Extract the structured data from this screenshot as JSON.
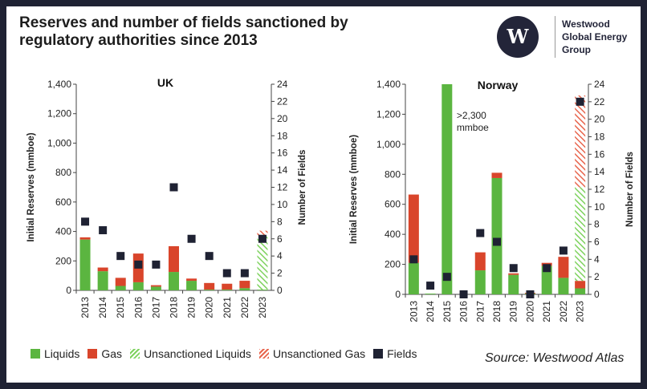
{
  "header": {
    "title_line1": "Reserves and number of fields sanctioned by",
    "title_line2": "regulatory authorities since 2013",
    "logo_letter": "W",
    "logo_line1": "Westwood",
    "logo_line2": "Global Energy",
    "logo_line3": "Group"
  },
  "colors": {
    "liquids": "#5bb540",
    "gas": "#d9452b",
    "unsanctioned_liquids": "#7ed25e",
    "unsanctioned_gas": "#e8654d",
    "fields": "#1f2233",
    "axis": "#444444"
  },
  "legend": [
    {
      "key": "liquids",
      "label": "Liquids"
    },
    {
      "key": "gas",
      "label": "Gas"
    },
    {
      "key": "unsanctioned_liquids",
      "label": "Unsanctioned Liquids"
    },
    {
      "key": "unsanctioned_gas",
      "label": "Unsanctioned Gas"
    },
    {
      "key": "fields",
      "label": "Fields"
    }
  ],
  "footer": {
    "source": "Source: Westwood Atlas"
  },
  "chart_data": [
    {
      "id": "uk",
      "type": "bar",
      "title": "UK",
      "ylabel": "Initial Reserves (mmboe)",
      "y2label": "Number of Fields",
      "ylim": [
        0,
        1400
      ],
      "y2lim": [
        0,
        24
      ],
      "yticks": [
        0,
        200,
        400,
        600,
        800,
        1000,
        1200,
        1400
      ],
      "y2ticks": [
        0,
        2,
        4,
        6,
        8,
        10,
        12,
        14,
        16,
        18,
        20,
        22,
        24
      ],
      "categories": [
        "2013",
        "2014",
        "2015",
        "2016",
        "2017",
        "2018",
        "2019",
        "2020",
        "2021",
        "2022",
        "2023"
      ],
      "series": [
        {
          "name": "Liquids",
          "key": "liquids",
          "values": [
            345,
            130,
            30,
            55,
            25,
            125,
            65,
            5,
            5,
            15,
            5
          ]
        },
        {
          "name": "Gas",
          "key": "gas",
          "values": [
            15,
            25,
            55,
            195,
            10,
            175,
            15,
            45,
            40,
            50,
            0
          ]
        },
        {
          "name": "Unsanctioned Liquids",
          "key": "unsanctioned_liquids",
          "values": [
            0,
            0,
            0,
            0,
            0,
            0,
            0,
            0,
            0,
            0,
            365
          ]
        },
        {
          "name": "Unsanctioned Gas",
          "key": "unsanctioned_gas",
          "values": [
            0,
            0,
            0,
            0,
            0,
            0,
            0,
            0,
            0,
            0,
            35
          ]
        }
      ],
      "fields": [
        8,
        7,
        4,
        3,
        3,
        12,
        6,
        4,
        2,
        2,
        6
      ],
      "annotation": null
    },
    {
      "id": "norway",
      "type": "bar",
      "title": "Norway",
      "ylabel": "Initial Reserves (mmboe)",
      "y2label": "Number of Fields",
      "ylim": [
        0,
        1400
      ],
      "y2lim": [
        0,
        24
      ],
      "yticks": [
        0,
        200,
        400,
        600,
        800,
        1000,
        1200,
        1400
      ],
      "y2ticks": [
        0,
        2,
        4,
        6,
        8,
        10,
        12,
        14,
        16,
        18,
        20,
        22,
        24
      ],
      "categories": [
        "2013",
        "2014",
        "2015",
        "2016",
        "2017",
        "2018",
        "2019",
        "2020",
        "2021",
        "2022",
        "2023"
      ],
      "series": [
        {
          "name": "Liquids",
          "key": "liquids",
          "values": [
            210,
            5,
            1400,
            0,
            160,
            775,
            130,
            5,
            190,
            110,
            40
          ]
        },
        {
          "name": "Gas",
          "key": "gas",
          "values": [
            455,
            0,
            0,
            0,
            120,
            35,
            10,
            5,
            20,
            140,
            50
          ]
        },
        {
          "name": "Unsanctioned Liquids",
          "key": "unsanctioned_liquids",
          "values": [
            0,
            0,
            0,
            0,
            0,
            0,
            0,
            0,
            0,
            0,
            625
          ]
        },
        {
          "name": "Unsanctioned Gas",
          "key": "unsanctioned_gas",
          "values": [
            0,
            0,
            0,
            0,
            0,
            0,
            0,
            0,
            0,
            0,
            610
          ]
        }
      ],
      "fields": [
        4,
        1,
        2,
        0,
        7,
        6,
        3,
        0,
        3,
        5,
        22
      ],
      "annotation": {
        "line1": ">2,300",
        "line2": "mmboe",
        "category": "2015"
      }
    }
  ]
}
